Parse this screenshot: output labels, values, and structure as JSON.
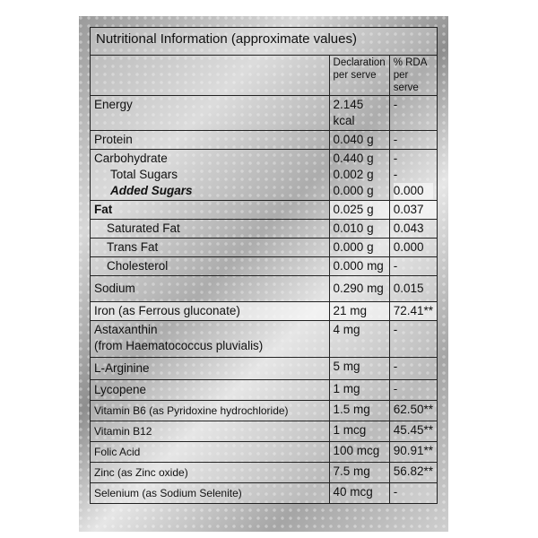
{
  "title": "Nutritional Information (approximate values)",
  "columns": {
    "declaration": "Declaration per serve",
    "rda": "% RDA per serve"
  },
  "rows": [
    {
      "label": "Energy",
      "decl": "2.145 kcal",
      "rda": "-"
    },
    {
      "label": "Protein",
      "decl": "0.040 g",
      "rda": "-"
    },
    {
      "label": "Carbohydrate",
      "decl": "0.440 g",
      "rda": "-"
    },
    {
      "label": "Total Sugars",
      "decl": "0.002 g",
      "rda": "-"
    },
    {
      "label": "Added Sugars",
      "decl": "0.000 g",
      "rda": "0.000"
    },
    {
      "label": "Fat",
      "decl": "0.025 g",
      "rda": "0.037"
    },
    {
      "label": "Saturated Fat",
      "decl": "0.010 g",
      "rda": "0.043"
    },
    {
      "label": "Trans Fat",
      "decl": "0.000 g",
      "rda": "0.000"
    },
    {
      "label": "Cholesterol",
      "decl": "0.000 mg",
      "rda": "-"
    },
    {
      "label": "Sodium",
      "decl": "0.290 mg",
      "rda": "0.015"
    },
    {
      "label": "Iron (as Ferrous gluconate)",
      "decl": "21 mg",
      "rda": "72.41**"
    },
    {
      "label": "Astaxanthin",
      "label2": "(from Haematococcus pluvialis)",
      "decl": "4 mg",
      "rda": "-"
    },
    {
      "label": "L-Arginine",
      "decl": "5 mg",
      "rda": "-"
    },
    {
      "label": "Lycopene",
      "decl": "1 mg",
      "rda": "-"
    },
    {
      "label": "Vitamin B6 (as Pyridoxine hydrochloride)",
      "decl": "1.5 mg",
      "rda": "62.50**"
    },
    {
      "label": "Vitamin B12",
      "decl": "1 mcg",
      "rda": "45.45**"
    },
    {
      "label": "Folic Acid",
      "decl": "100 mcg",
      "rda": "90.91**"
    },
    {
      "label": "Zinc (as Zinc oxide)",
      "decl": "7.5 mg",
      "rda": "56.82**"
    },
    {
      "label": "Selenium (as Sodium Selenite)",
      "decl": "40 mcg",
      "rda": "-"
    }
  ]
}
